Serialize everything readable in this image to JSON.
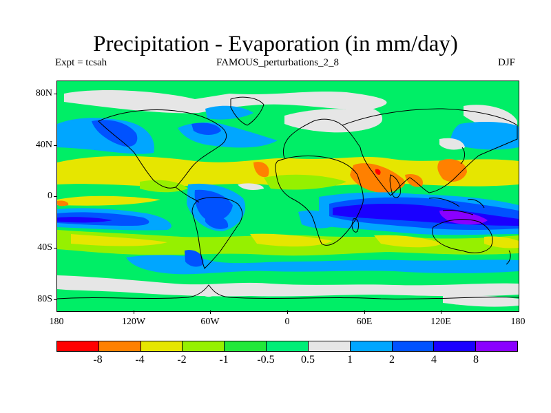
{
  "title": "Precipitation - Evaporation (in mm/day)",
  "subtitle_left": "Expt = tcsah",
  "subtitle_center": "FAMOUS_perturbations_2_8",
  "subtitle_right": "DJF",
  "map": {
    "projection": "cylindrical-equidistant",
    "lon_range": [
      -180,
      180
    ],
    "lat_range": [
      -90,
      90
    ],
    "lat_ticks": [
      "80N",
      "40N",
      "0",
      "40S",
      "80S"
    ],
    "lon_ticks": [
      "180",
      "120W",
      "60W",
      "0",
      "60E",
      "120E",
      "180"
    ]
  },
  "colorbar": {
    "colors": [
      "#ff0000",
      "#ff8000",
      "#e6e600",
      "#96f000",
      "#22e83a",
      "#00ee77",
      "#e6e6e6",
      "#00a6ff",
      "#0052ff",
      "#1a00ff",
      "#8a00ff"
    ],
    "labels": [
      "-8",
      "-4",
      "-2",
      "-1",
      "-0.5",
      "0.5",
      "1",
      "2",
      "4",
      "8"
    ]
  }
}
